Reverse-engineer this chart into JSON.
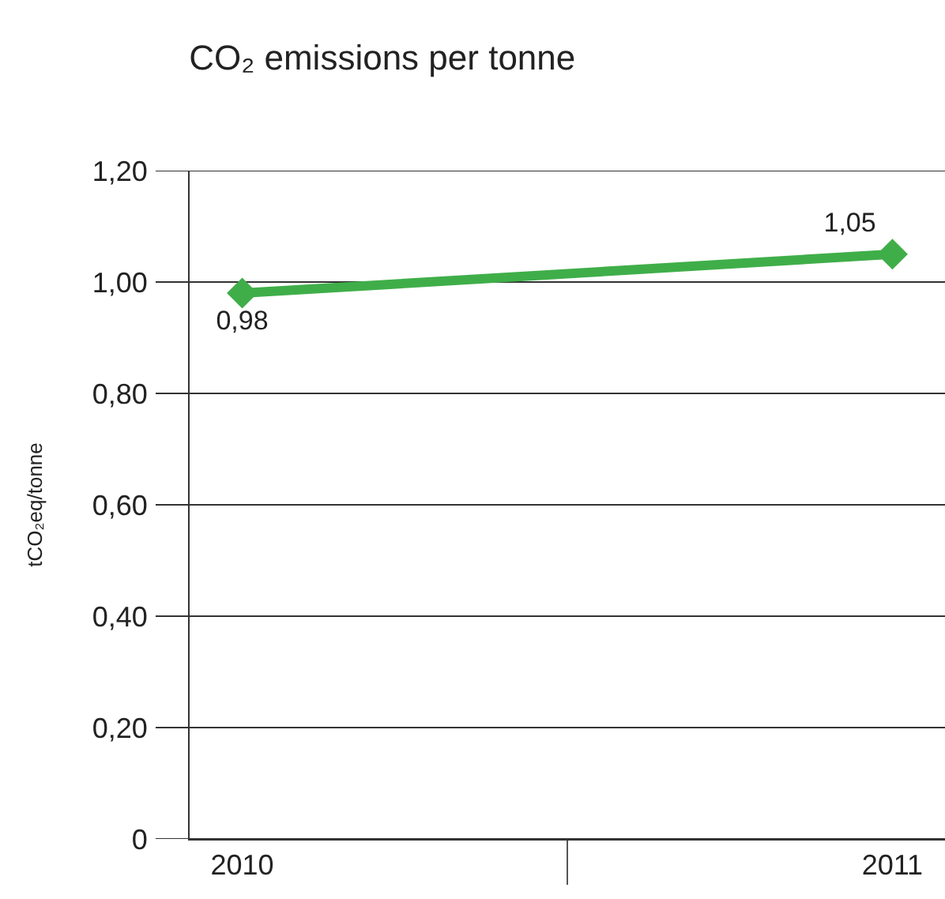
{
  "chart_data": {
    "type": "line",
    "title": "CO₂ emissions per tonne",
    "ylabel": "tCO₂eq/tonne",
    "categories": [
      "2010",
      "2011"
    ],
    "series": [
      {
        "color": "#3fae49",
        "values": [
          0.98,
          1.05
        ],
        "value_labels": [
          "0,98",
          "1,05"
        ]
      }
    ],
    "ylim": [
      0,
      1.2
    ],
    "yticks": [
      0,
      {
        "value": 0.2,
        "label": "0,20"
      },
      {
        "value": 0.4,
        "label": "0,40"
      },
      {
        "value": 0.6,
        "label": "0,60"
      },
      {
        "value": 0.8,
        "label": "0,80"
      },
      {
        "value": 1,
        "label": "1,00"
      },
      {
        "value": 1.2,
        "label": "1,20"
      }
    ],
    "grid": "y",
    "marker": "diamond",
    "line_style": "solid"
  }
}
